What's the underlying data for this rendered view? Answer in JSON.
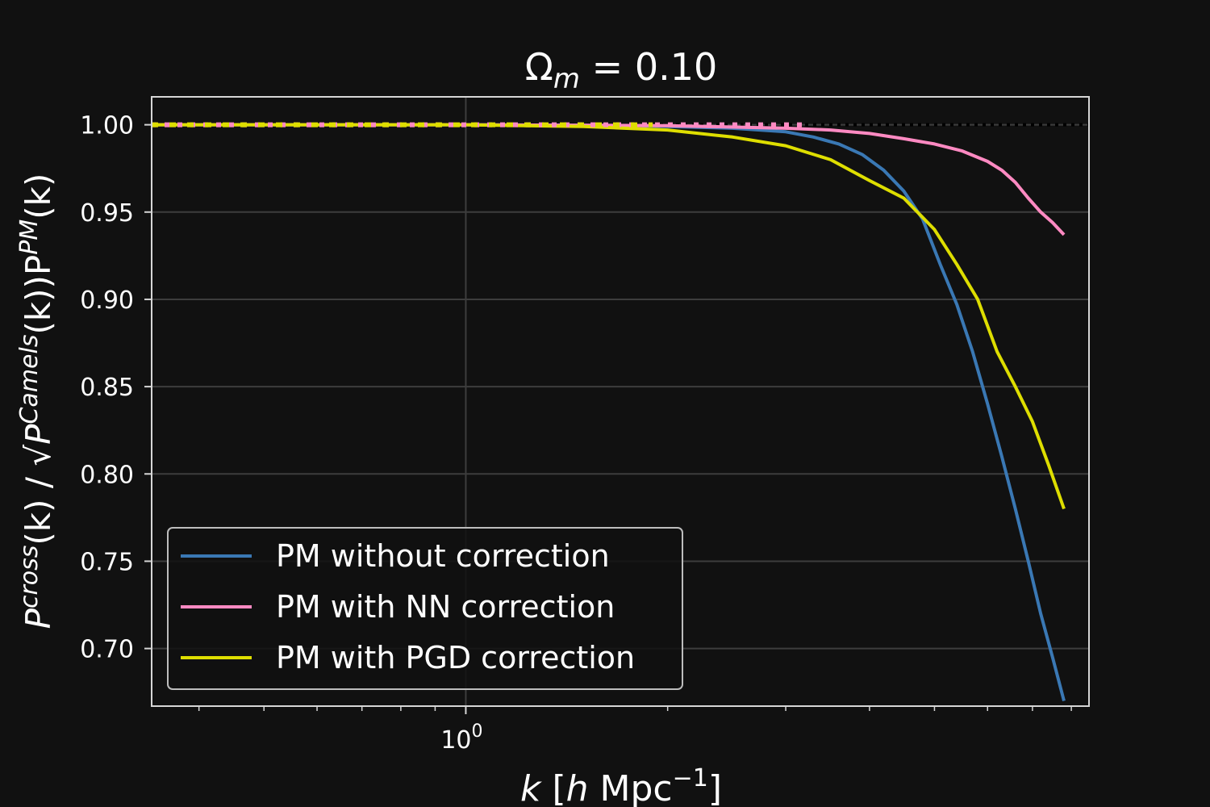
{
  "chart_data": {
    "type": "line",
    "title": "Ω",
    "title_sub": "m",
    "title_rest": " = 0.10",
    "xlabel_k": "k",
    "xlabel_bracket_open": " [",
    "xlabel_h": "h",
    "xlabel_unit": " Mpc",
    "xlabel_exp": "−1",
    "xlabel_bracket_close": "]",
    "ylabel_p1": "P",
    "ylabel_sup1": "cross",
    "ylabel_mid": "(k)  / ",
    "ylabel_sqrt": "√",
    "ylabel_p2": "P",
    "ylabel_sup2": "Camels",
    "ylabel_mid2": "(k))P",
    "ylabel_sup3": "PM",
    "ylabel_end": "(k)",
    "xscale": "log",
    "xlim": [
      0.34,
      8.5
    ],
    "ylim": [
      0.667,
      1.016
    ],
    "grid": true,
    "legend_position": "lower-left",
    "x_major_ticks": [
      {
        "value": 1,
        "base": "10",
        "exp": "0"
      }
    ],
    "x_minor_ticks": [
      0.4,
      0.5,
      0.6,
      0.7,
      0.8,
      0.9,
      2,
      3,
      4,
      5,
      6,
      7,
      8
    ],
    "y_ticks": [
      {
        "value": 0.7,
        "label": "0.70"
      },
      {
        "value": 0.75,
        "label": "0.75"
      },
      {
        "value": 0.8,
        "label": "0.80"
      },
      {
        "value": 0.85,
        "label": "0.85"
      },
      {
        "value": 0.9,
        "label": "0.90"
      },
      {
        "value": 0.95,
        "label": "0.95"
      },
      {
        "value": 1.0,
        "label": "1.00"
      }
    ],
    "reference_line": {
      "y": 1.0,
      "color": "#000000",
      "style": "dotted"
    },
    "series": [
      {
        "name": "PM without correction",
        "color": "#3a78b4",
        "x": [
          0.34,
          1.0,
          1.8,
          2.5,
          3.0,
          3.3,
          3.6,
          3.9,
          4.2,
          4.5,
          4.8,
          5.1,
          5.4,
          5.7,
          6.0,
          6.3,
          6.6,
          6.9,
          7.2,
          7.5,
          7.8
        ],
        "y": [
          1.0,
          1.0,
          0.9995,
          0.998,
          0.996,
          0.993,
          0.989,
          0.983,
          0.974,
          0.962,
          0.946,
          0.92,
          0.897,
          0.87,
          0.84,
          0.81,
          0.78,
          0.75,
          0.72,
          0.695,
          0.67
        ]
      },
      {
        "name": "PM with NN correction",
        "color": "#ff8ac2",
        "x": [
          0.34,
          1.0,
          2.0,
          3.0,
          3.5,
          4.0,
          4.5,
          5.0,
          5.5,
          6.0,
          6.3,
          6.6,
          6.9,
          7.2,
          7.5,
          7.8
        ],
        "y": [
          1.0,
          1.0,
          0.9995,
          0.998,
          0.997,
          0.995,
          0.992,
          0.989,
          0.985,
          0.979,
          0.974,
          0.967,
          0.958,
          0.95,
          0.944,
          0.937
        ]
      },
      {
        "name": "PM with PGD correction",
        "color": "#dede00",
        "x": [
          0.34,
          1.0,
          1.5,
          2.0,
          2.5,
          3.0,
          3.5,
          4.0,
          4.5,
          5.0,
          5.4,
          5.8,
          6.2,
          6.6,
          7.0,
          7.4,
          7.8
        ],
        "y": [
          1.0,
          1.0,
          0.999,
          0.997,
          0.993,
          0.988,
          0.98,
          0.968,
          0.958,
          0.94,
          0.92,
          0.9,
          0.87,
          0.85,
          0.83,
          0.805,
          0.78
        ]
      }
    ]
  }
}
